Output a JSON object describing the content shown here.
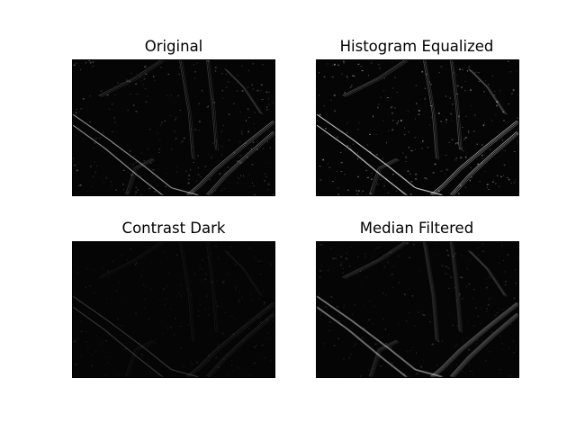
{
  "figure": {
    "background": "#ffffff",
    "panels": [
      {
        "id": "original",
        "title": "Original",
        "tone": "#ffffff",
        "strength": 0.55
      },
      {
        "id": "equalized",
        "title": "Histogram Equalized",
        "tone": "#ffffff",
        "strength": 0.8
      },
      {
        "id": "dark",
        "title": "Contrast Dark",
        "tone": "#ffffff",
        "strength": 0.18
      },
      {
        "id": "median",
        "title": "Median Filtered",
        "tone": "#ffffff",
        "strength": 0.3
      }
    ]
  }
}
